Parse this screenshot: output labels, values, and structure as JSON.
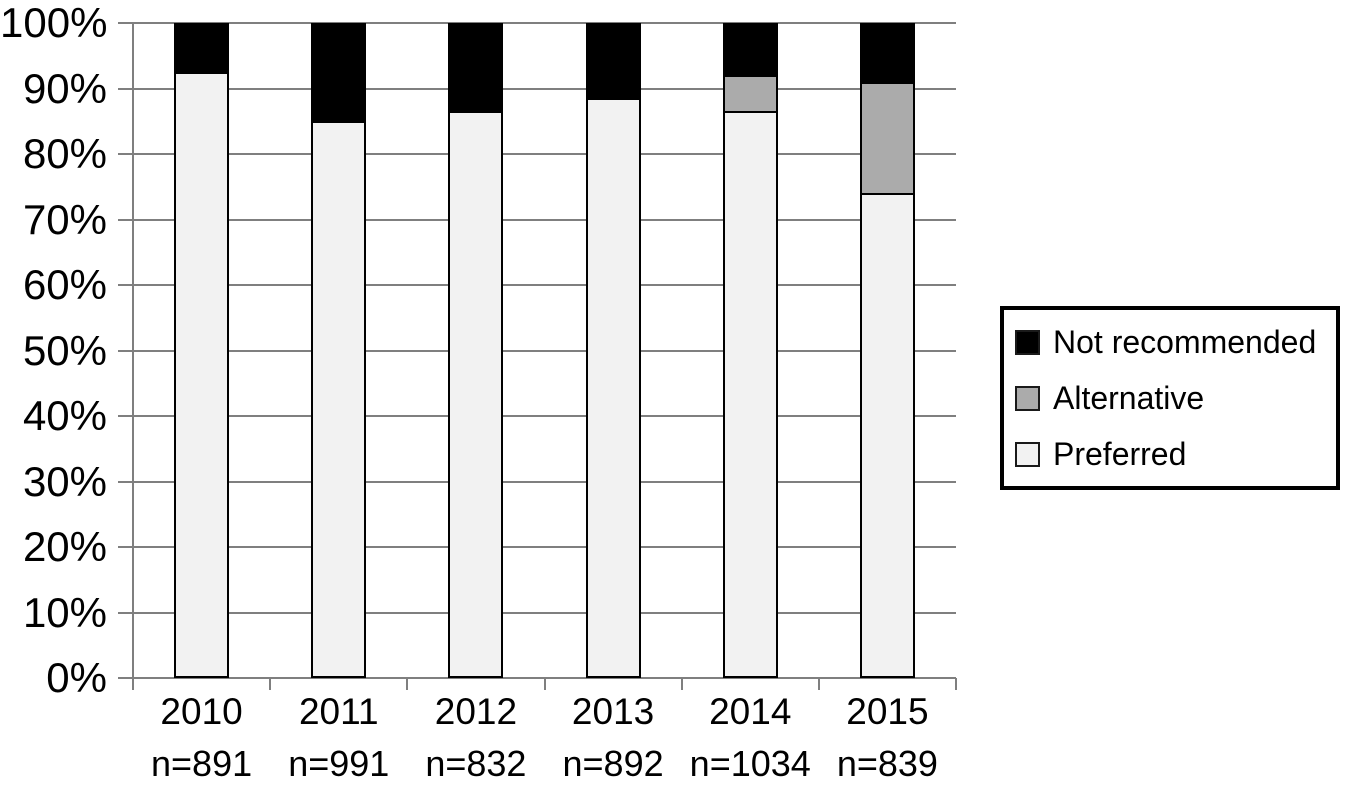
{
  "chart_data": {
    "type": "bar",
    "stacked": true,
    "categories": [
      "2010",
      "2011",
      "2012",
      "2013",
      "2014",
      "2015"
    ],
    "category_sublabels": [
      "n=891",
      "n=991",
      "n=832",
      "n=892",
      "n=1034",
      "n=839"
    ],
    "series": [
      {
        "name": "Preferred",
        "color": "#f2f2f2",
        "values": [
          92.5,
          85,
          86.5,
          88.5,
          86.5,
          74
        ]
      },
      {
        "name": "Alternative",
        "color": "#ababab",
        "values": [
          0,
          0,
          0,
          0,
          5.5,
          17
        ]
      },
      {
        "name": "Not recommended",
        "color": "#000000",
        "values": [
          7.5,
          15,
          13.5,
          11.5,
          8,
          9
        ]
      }
    ],
    "ylim": [
      0,
      100
    ],
    "y_tick_labels": [
      "0%",
      "10%",
      "20%",
      "30%",
      "40%",
      "50%",
      "60%",
      "70%",
      "80%",
      "90%",
      "100%"
    ],
    "grid": true,
    "gridline_color": "#7f7f7f",
    "bar_border_color": "#000000",
    "background_color": "#ffffff",
    "legend": {
      "position": "right",
      "entries": [
        {
          "label": "Not recommended",
          "color": "#000000"
        },
        {
          "label": "Alternative",
          "color": "#ababab"
        },
        {
          "label": "Preferred",
          "color": "#f2f2f2"
        }
      ]
    }
  }
}
